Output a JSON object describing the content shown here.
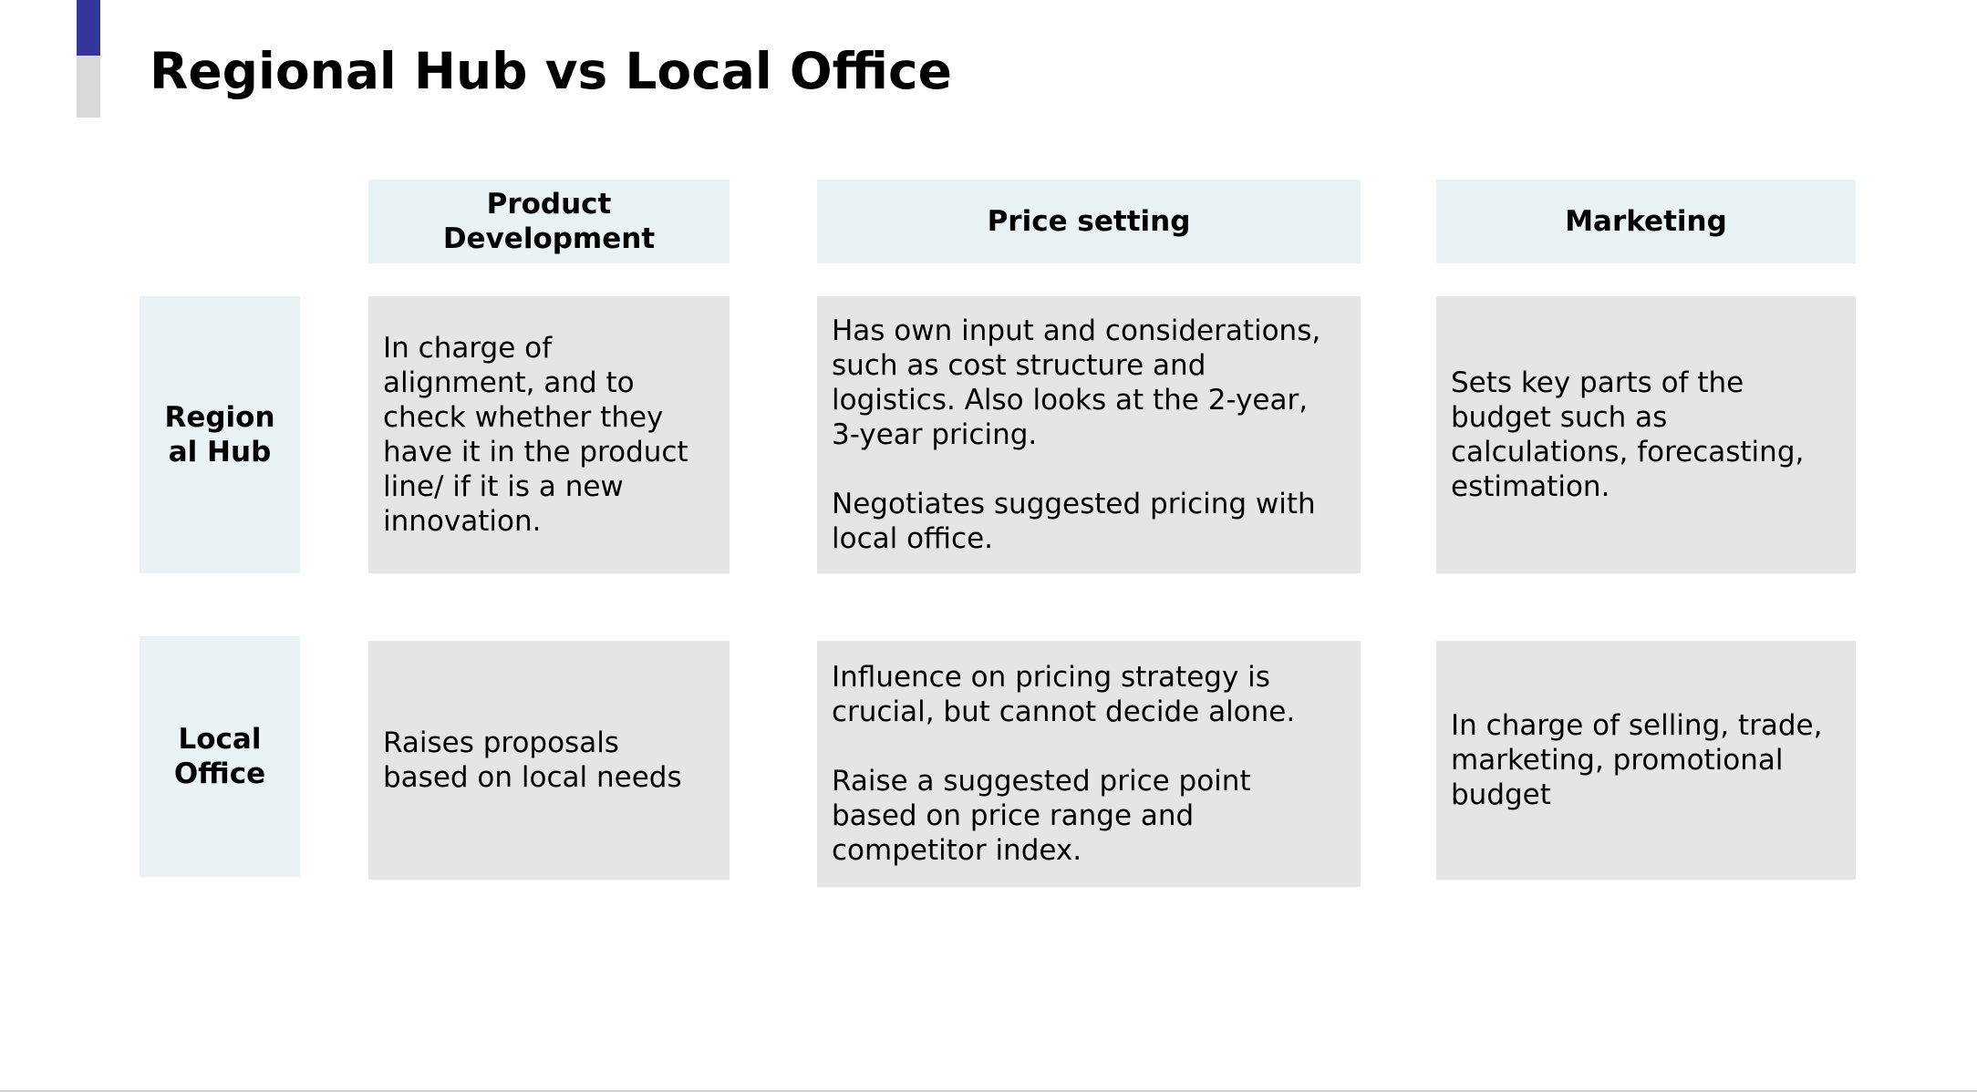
{
  "title": "Regional Hub vs Local Office",
  "columns": {
    "product": "Product\nDevelopment",
    "price": "Price setting",
    "marketing": "Marketing"
  },
  "rows": {
    "regional": {
      "label": "Region\nal Hub",
      "product": "In charge of\nalignment, and to\ncheck whether they\nhave it in the product\nline/ if it is a new\ninnovation.",
      "price": "Has own input and considerations,\nsuch as cost structure and\nlogistics. Also looks at the 2-year,\n3-year pricing.\n\nNegotiates suggested pricing with\nlocal office.",
      "marketing": "Sets key parts of the\nbudget such as\ncalculations, forecasting,\nestimation."
    },
    "local": {
      "label": "Local\nOffice",
      "product": "Raises proposals\nbased on local needs",
      "price": "Influence on pricing strategy is\ncrucial, but cannot decide alone.\n\nRaise a suggested price point\nbased on price range and\ncompetitor index.",
      "marketing": "In charge of selling, trade,\nmarketing, promotional\nbudget"
    }
  },
  "colors": {
    "accent": "#343699",
    "accent_secondary": "#d9d9d9",
    "header_fill": "#e9f2f4",
    "cell_fill": "#e5e5e5"
  }
}
